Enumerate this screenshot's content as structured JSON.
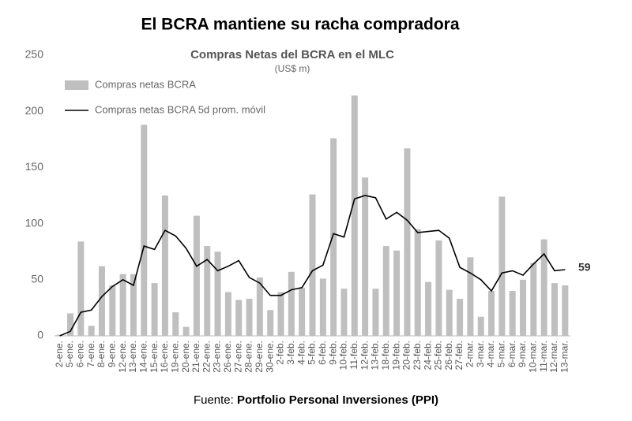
{
  "title": "El BCRA mantiene su racha compradora",
  "chart_data": {
    "type": "bar_line",
    "title": "Compras Netas del BCRA en el MLC",
    "subtitle": "(US$ m)",
    "categories": [
      "2-ene.",
      "5-ene.",
      "6-ene.",
      "7-ene.",
      "8-ene.",
      "9-ene.",
      "12-ene.",
      "13-ene.",
      "14-ene.",
      "15-ene.",
      "16-ene.",
      "19-ene.",
      "20-ene.",
      "21-ene.",
      "22-ene.",
      "23-ene.",
      "26-ene.",
      "27-ene.",
      "28-ene.",
      "29-ene.",
      "30-ene.",
      "2-feb.",
      "3-feb.",
      "4-feb.",
      "5-feb.",
      "6-feb.",
      "9-feb.",
      "10-feb.",
      "11-feb.",
      "12-feb.",
      "13-feb.",
      "18-feb.",
      "19-feb.",
      "20-feb.",
      "23-feb.",
      "24-feb.",
      "25-feb.",
      "26-feb.",
      "27-feb.",
      "2-mar.",
      "3-mar.",
      "4-mar.",
      "5-mar.",
      "6-mar.",
      "9-mar.",
      "10-mar.",
      "11-mar.",
      "12-mar.",
      "13-mar."
    ],
    "series": [
      {
        "name": "Compras netas BCRA",
        "type": "bar",
        "color": "#bfbfbf",
        "values": [
          1,
          20,
          84,
          9,
          62,
          45,
          55,
          55,
          188,
          47,
          125,
          21,
          8,
          107,
          80,
          75,
          39,
          32,
          33,
          52,
          23,
          39,
          57,
          43,
          126,
          51,
          176,
          42,
          214,
          141,
          42,
          80,
          76,
          167,
          95,
          48,
          85,
          41,
          33,
          70,
          17,
          40,
          124,
          40,
          50,
          65,
          86,
          47,
          45
        ]
      },
      {
        "name": "Compras netas BCRA 5d prom. móvil",
        "type": "line",
        "color": "#000000",
        "values": [
          0,
          4,
          21,
          23,
          35,
          44,
          50,
          45,
          80,
          77,
          94,
          89,
          78,
          62,
          68,
          58,
          62,
          67,
          52,
          47,
          36,
          36,
          41,
          43,
          58,
          63,
          91,
          88,
          122,
          125,
          123,
          104,
          110,
          103,
          92,
          93,
          94,
          87,
          61,
          56,
          50,
          40,
          56,
          58,
          54,
          64,
          73,
          58,
          59
        ]
      }
    ],
    "ylim": [
      0,
      250
    ],
    "yticks": [
      0,
      50,
      100,
      150,
      200,
      250
    ],
    "grid": false,
    "legend": "top-left"
  },
  "footer": {
    "prefix": "Fuente:",
    "source": "Portfolio Personal Inversiones (PPI)"
  }
}
